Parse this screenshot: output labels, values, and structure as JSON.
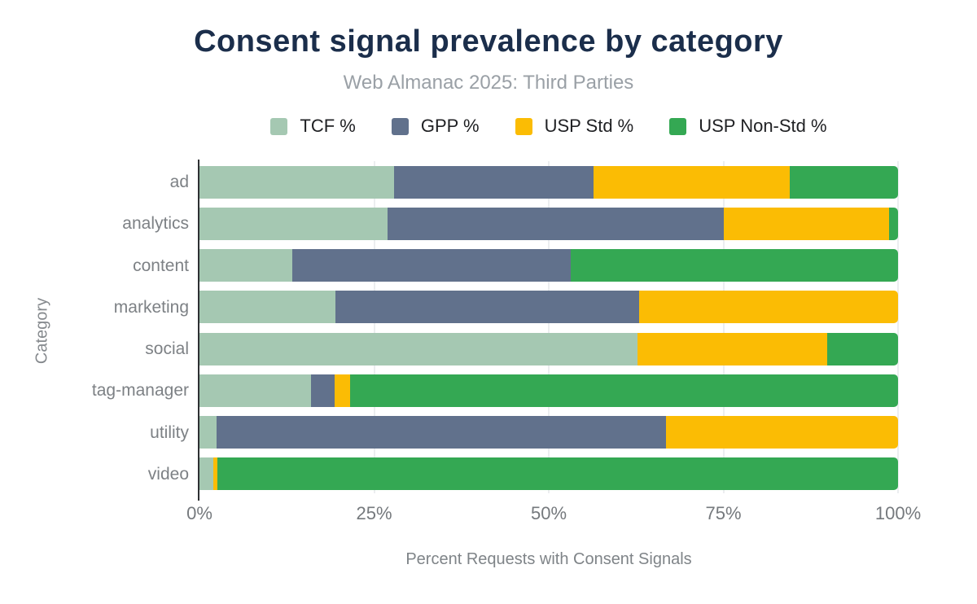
{
  "chart": {
    "title": "Consent signal prevalence by category",
    "subtitle": "Web Almanac 2025: Third Parties",
    "xlabel": "Percent Requests with Consent Signals",
    "ylabel": "Category"
  },
  "ui_colors": {
    "title": "#1b2e4b",
    "subtitle": "#9aa0a6",
    "tick_text": "#75797d",
    "axis_title_text": "#7f8488",
    "legend_text": "#202124",
    "gridline": "#eceef0",
    "axis_line": "#2e3033",
    "background": "#ffffff"
  },
  "chart_data": {
    "type": "bar",
    "stacked": true,
    "orientation": "horizontal",
    "normalized_to_100": true,
    "title": "Consent signal prevalence by category",
    "subtitle": "Web Almanac 2025: Third Parties",
    "xlabel": "Percent Requests with Consent Signals",
    "ylabel": "Category",
    "xlim": [
      0,
      100
    ],
    "grid": true,
    "legend_position": "top",
    "x_ticks": [
      "0%",
      "25%",
      "50%",
      "75%",
      "100%"
    ],
    "x_tick_values": [
      0,
      25,
      50,
      75,
      100
    ],
    "categories": [
      "ad",
      "analytics",
      "content",
      "marketing",
      "social",
      "tag-manager",
      "utility",
      "video"
    ],
    "series": [
      {
        "name": "TCF %",
        "color": "#a5c8b2",
        "values": [
          27.9,
          26.9,
          13.3,
          19.5,
          62.7,
          16.0,
          2.5,
          2.0
        ]
      },
      {
        "name": "GPP %",
        "color": "#61718c",
        "values": [
          28.5,
          48.2,
          39.8,
          43.4,
          0,
          3.3,
          64.3,
          0
        ]
      },
      {
        "name": "USP Std %",
        "color": "#fbbc04",
        "values": [
          28.1,
          23.6,
          0,
          37.1,
          27.2,
          2.3,
          33.2,
          0.6
        ]
      },
      {
        "name": "USP Non-Std %",
        "color": "#34a853",
        "values": [
          15.5,
          1.3,
          46.9,
          0,
          10.1,
          78.4,
          0,
          97.4
        ]
      }
    ]
  }
}
